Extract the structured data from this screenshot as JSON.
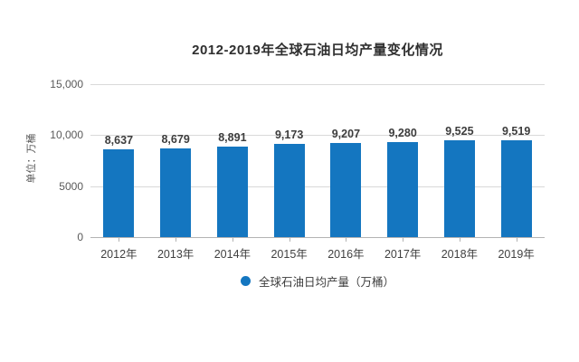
{
  "title": "2012-2019年全球石油日均产量变化情况",
  "y_axis_title": "单位：万桶",
  "legend": {
    "label": "全球石油日均产量（万桶）",
    "marker": "circle-icon"
  },
  "colors": {
    "bar": "#1476c0",
    "gridline": "#d9d9d9",
    "axis_line": "#b3b3b3",
    "title_text": "#2f2f2f",
    "label_text": "#3d3d3d",
    "tick_text": "#595959"
  },
  "chart_data": {
    "type": "bar",
    "title": "2012-2019年全球石油日均产量变化情况",
    "categories": [
      "2012年",
      "2013年",
      "2014年",
      "2015年",
      "2016年",
      "2017年",
      "2018年",
      "2019年"
    ],
    "values": [
      8637,
      8679,
      8891,
      9173,
      9207,
      9280,
      9525,
      9519
    ],
    "value_labels": [
      "8,637",
      "8,679",
      "8,891",
      "9,173",
      "9,207",
      "9,280",
      "9,525",
      "9,519"
    ],
    "xlabel": "",
    "ylabel": "单位：万桶",
    "ylim": [
      0,
      15000
    ],
    "yticks": [
      {
        "value": 0,
        "label": "0"
      },
      {
        "value": 5000,
        "label": "5000"
      },
      {
        "value": 10000,
        "label": "10,000"
      },
      {
        "value": 15000,
        "label": "15,000"
      }
    ],
    "grid": "horizontal",
    "legend_entries": [
      "全球石油日均产量（万桶）"
    ],
    "legend_position": "bottom"
  }
}
